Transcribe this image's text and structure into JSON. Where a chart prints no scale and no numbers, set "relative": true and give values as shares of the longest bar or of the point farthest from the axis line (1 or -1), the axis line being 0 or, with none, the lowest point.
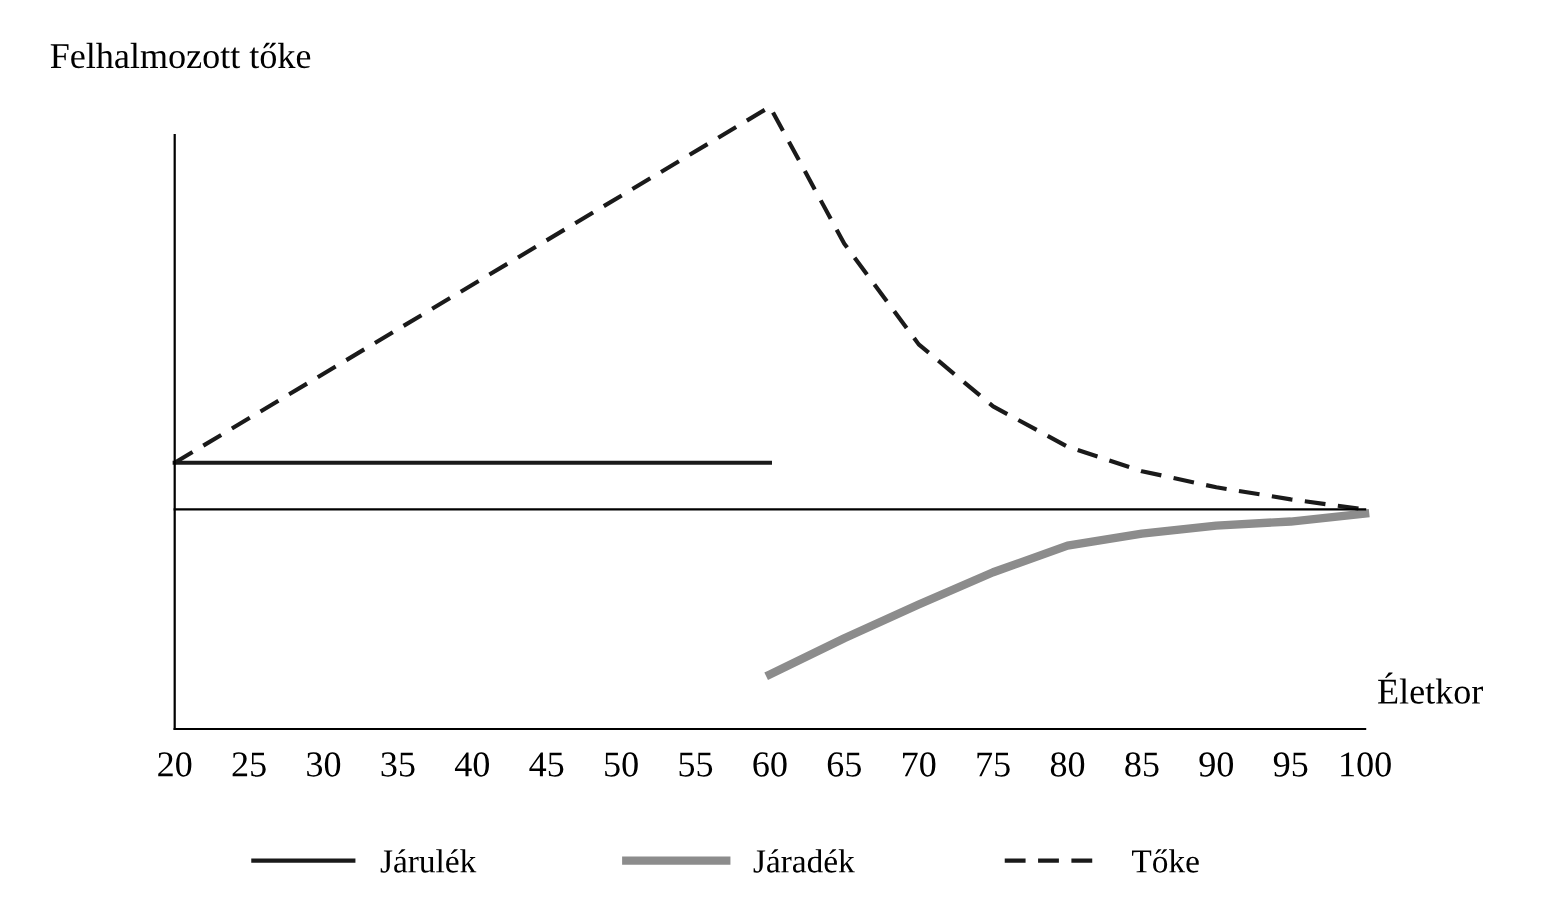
{
  "chart_data": {
    "type": "line",
    "relative": true,
    "ylabel": "Felhalmozott tőke",
    "xlabel": "Életkor",
    "xlim": [
      20,
      100
    ],
    "xticks": [
      20,
      25,
      30,
      35,
      40,
      45,
      50,
      55,
      60,
      65,
      70,
      75,
      80,
      85,
      90,
      95,
      100
    ],
    "grid": false,
    "legend": "bottom",
    "marker": "none",
    "series": [
      {
        "name": "Járulék",
        "color": "#1a1a1a",
        "line_style": "solid",
        "x": [
          20,
          60
        ],
        "values": [
          0.116,
          0.116
        ]
      },
      {
        "name": "Járadék",
        "color": "#8c8c8c",
        "line_style": "solid",
        "x": [
          60,
          65,
          70,
          75,
          80,
          85,
          90,
          95,
          100
        ],
        "values": [
          -0.41,
          -0.32,
          -0.236,
          -0.156,
          -0.09,
          -0.06,
          -0.04,
          -0.03,
          -0.01
        ]
      },
      {
        "name": "Tőke",
        "color": "#1a1a1a",
        "line_style": "dashed",
        "x": [
          20,
          60,
          65,
          70,
          75,
          80,
          85,
          90,
          95,
          100
        ],
        "values": [
          0.116,
          1,
          0.66,
          0.41,
          0.256,
          0.156,
          0.095,
          0.055,
          0.025,
          0
        ]
      }
    ]
  }
}
